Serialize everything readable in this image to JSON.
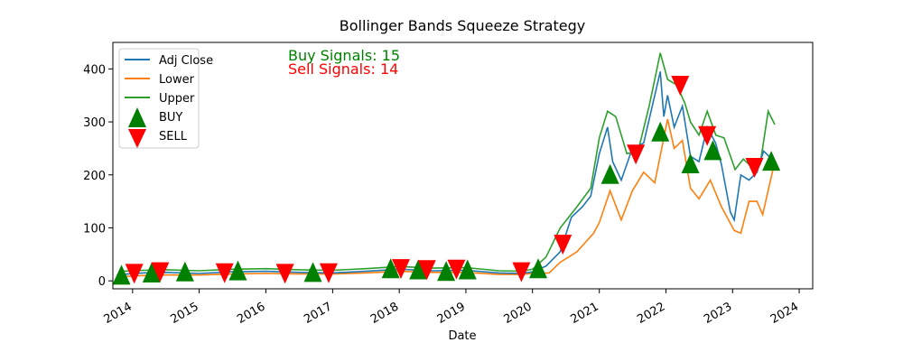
{
  "chart_data": {
    "type": "line",
    "title": "Bollinger Bands Squeeze Strategy",
    "xlabel": "Date",
    "ylabel": "",
    "xlim": [
      "2013-09-15",
      "2024-03-15"
    ],
    "ylim": [
      -15,
      450
    ],
    "x_ticks": [
      "2014-01-01",
      "2015-01-01",
      "2016-01-01",
      "2017-01-01",
      "2018-01-01",
      "2019-01-01",
      "2020-01-01",
      "2021-01-01",
      "2022-01-01",
      "2023-01-01",
      "2024-01-01"
    ],
    "x_tick_labels": [
      "2014",
      "2015",
      "2016",
      "2017",
      "2018",
      "2019",
      "2020",
      "2021",
      "2022",
      "2023",
      "2024"
    ],
    "y_ticks": [
      0,
      100,
      200,
      300,
      400
    ],
    "y_tick_labels": [
      "0",
      "100",
      "200",
      "300",
      "400"
    ],
    "grid": false,
    "legend_placement": "upper-left",
    "series": [
      {
        "name": "Adj Close",
        "color": "#1f77b4",
        "points": [
          [
            "2013-11-01",
            12
          ],
          [
            "2014-03-01",
            15
          ],
          [
            "2014-07-01",
            16
          ],
          [
            "2015-01-01",
            14
          ],
          [
            "2015-07-01",
            17
          ],
          [
            "2016-01-01",
            18
          ],
          [
            "2016-07-01",
            16
          ],
          [
            "2017-01-01",
            15
          ],
          [
            "2017-07-01",
            18
          ],
          [
            "2018-01-01",
            22
          ],
          [
            "2018-07-01",
            19
          ],
          [
            "2019-01-01",
            20
          ],
          [
            "2019-07-01",
            15
          ],
          [
            "2019-11-01",
            14
          ],
          [
            "2020-01-01",
            17
          ],
          [
            "2020-03-15",
            28
          ],
          [
            "2020-06-01",
            55
          ],
          [
            "2020-08-01",
            120
          ],
          [
            "2020-10-01",
            140
          ],
          [
            "2020-11-15",
            160
          ],
          [
            "2021-01-01",
            240
          ],
          [
            "2021-02-15",
            290
          ],
          [
            "2021-03-15",
            225
          ],
          [
            "2021-05-01",
            190
          ],
          [
            "2021-07-01",
            250
          ],
          [
            "2021-09-01",
            260
          ],
          [
            "2021-11-01",
            350
          ],
          [
            "2021-12-01",
            395
          ],
          [
            "2021-12-20",
            310
          ],
          [
            "2022-01-10",
            350
          ],
          [
            "2022-02-15",
            290
          ],
          [
            "2022-04-01",
            330
          ],
          [
            "2022-05-15",
            235
          ],
          [
            "2022-07-01",
            225
          ],
          [
            "2022-08-15",
            290
          ],
          [
            "2022-09-30",
            260
          ],
          [
            "2022-11-01",
            220
          ],
          [
            "2022-12-20",
            130
          ],
          [
            "2023-01-10",
            115
          ],
          [
            "2023-02-15",
            200
          ],
          [
            "2023-04-01",
            190
          ],
          [
            "2023-05-15",
            205
          ],
          [
            "2023-06-20",
            245
          ],
          [
            "2023-08-20",
            225
          ]
        ]
      },
      {
        "name": "Lower",
        "color": "#ff7f0e",
        "points": [
          [
            "2013-11-01",
            8
          ],
          [
            "2014-03-01",
            10
          ],
          [
            "2014-07-01",
            11
          ],
          [
            "2015-01-01",
            11
          ],
          [
            "2015-07-01",
            13
          ],
          [
            "2016-01-01",
            14
          ],
          [
            "2016-07-01",
            13
          ],
          [
            "2017-01-01",
            13
          ],
          [
            "2017-07-01",
            15
          ],
          [
            "2018-01-01",
            18
          ],
          [
            "2018-07-01",
            16
          ],
          [
            "2019-01-01",
            16
          ],
          [
            "2019-07-01",
            12
          ],
          [
            "2019-11-01",
            12
          ],
          [
            "2020-01-01",
            14
          ],
          [
            "2020-04-01",
            15
          ],
          [
            "2020-06-01",
            35
          ],
          [
            "2020-09-01",
            55
          ],
          [
            "2020-12-01",
            90
          ],
          [
            "2021-01-01",
            110
          ],
          [
            "2021-03-01",
            170
          ],
          [
            "2021-05-01",
            115
          ],
          [
            "2021-07-01",
            170
          ],
          [
            "2021-09-01",
            205
          ],
          [
            "2021-11-01",
            185
          ],
          [
            "2022-01-10",
            305
          ],
          [
            "2022-02-15",
            250
          ],
          [
            "2022-04-01",
            265
          ],
          [
            "2022-05-15",
            175
          ],
          [
            "2022-07-01",
            155
          ],
          [
            "2022-09-01",
            190
          ],
          [
            "2022-11-01",
            140
          ],
          [
            "2023-01-10",
            95
          ],
          [
            "2023-02-15",
            90
          ],
          [
            "2023-04-01",
            150
          ],
          [
            "2023-05-15",
            150
          ],
          [
            "2023-06-15",
            125
          ],
          [
            "2023-08-20",
            225
          ]
        ]
      },
      {
        "name": "Upper",
        "color": "#2ca02c",
        "points": [
          [
            "2013-11-01",
            18
          ],
          [
            "2014-03-01",
            20
          ],
          [
            "2014-07-01",
            21
          ],
          [
            "2015-01-01",
            19
          ],
          [
            "2015-07-01",
            22
          ],
          [
            "2016-01-01",
            23
          ],
          [
            "2016-07-01",
            21
          ],
          [
            "2017-01-01",
            20
          ],
          [
            "2017-07-01",
            23
          ],
          [
            "2018-01-01",
            27
          ],
          [
            "2018-07-01",
            24
          ],
          [
            "2019-01-01",
            25
          ],
          [
            "2019-07-01",
            19
          ],
          [
            "2019-11-01",
            18
          ],
          [
            "2020-01-01",
            22
          ],
          [
            "2020-03-15",
            45
          ],
          [
            "2020-06-01",
            100
          ],
          [
            "2020-09-01",
            140
          ],
          [
            "2020-11-15",
            175
          ],
          [
            "2021-01-01",
            270
          ],
          [
            "2021-02-15",
            320
          ],
          [
            "2021-04-01",
            310
          ],
          [
            "2021-06-01",
            240
          ],
          [
            "2021-08-01",
            245
          ],
          [
            "2021-10-01",
            330
          ],
          [
            "2021-12-01",
            430
          ],
          [
            "2022-01-10",
            380
          ],
          [
            "2022-03-01",
            370
          ],
          [
            "2022-04-15",
            335
          ],
          [
            "2022-05-15",
            300
          ],
          [
            "2022-07-01",
            275
          ],
          [
            "2022-08-15",
            320
          ],
          [
            "2022-10-01",
            275
          ],
          [
            "2022-11-15",
            270
          ],
          [
            "2023-01-15",
            210
          ],
          [
            "2023-03-01",
            230
          ],
          [
            "2023-04-15",
            215
          ],
          [
            "2023-06-01",
            220
          ],
          [
            "2023-07-15",
            320
          ],
          [
            "2023-08-20",
            295
          ]
        ]
      }
    ],
    "buy_signals": {
      "name": "BUY",
      "color": "#008000",
      "marker": "triangle-up",
      "points": [
        [
          "2013-11-01",
          10
        ],
        [
          "2014-04-15",
          14
        ],
        [
          "2014-10-15",
          16
        ],
        [
          "2015-08-01",
          18
        ],
        [
          "2016-09-15",
          15
        ],
        [
          "2017-11-15",
          22
        ],
        [
          "2018-04-15",
          20
        ],
        [
          "2018-09-15",
          17
        ],
        [
          "2019-01-10",
          20
        ],
        [
          "2020-02-01",
          22
        ],
        [
          "2021-03-01",
          200
        ],
        [
          "2021-12-01",
          280
        ],
        [
          "2022-05-15",
          220
        ],
        [
          "2022-09-15",
          245
        ],
        [
          "2023-08-01",
          225
        ]
      ]
    },
    "sell_signals": {
      "name": "SELL",
      "color": "#ff0000",
      "marker": "triangle-down",
      "points": [
        [
          "2014-01-10",
          15
        ],
        [
          "2014-06-01",
          18
        ],
        [
          "2015-05-20",
          16
        ],
        [
          "2016-04-15",
          15
        ],
        [
          "2016-12-10",
          16
        ],
        [
          "2018-01-10",
          24
        ],
        [
          "2018-06-01",
          22
        ],
        [
          "2018-11-10",
          23
        ],
        [
          "2019-11-01",
          18
        ],
        [
          "2020-06-15",
          70
        ],
        [
          "2021-07-20",
          240
        ],
        [
          "2022-03-20",
          370
        ],
        [
          "2022-08-15",
          275
        ],
        [
          "2023-05-01",
          215
        ]
      ]
    },
    "annotations": [
      {
        "text": "Buy Signals: 15",
        "color": "#008000"
      },
      {
        "text": "Sell Signals: 14",
        "color": "#ff0000"
      }
    ]
  }
}
